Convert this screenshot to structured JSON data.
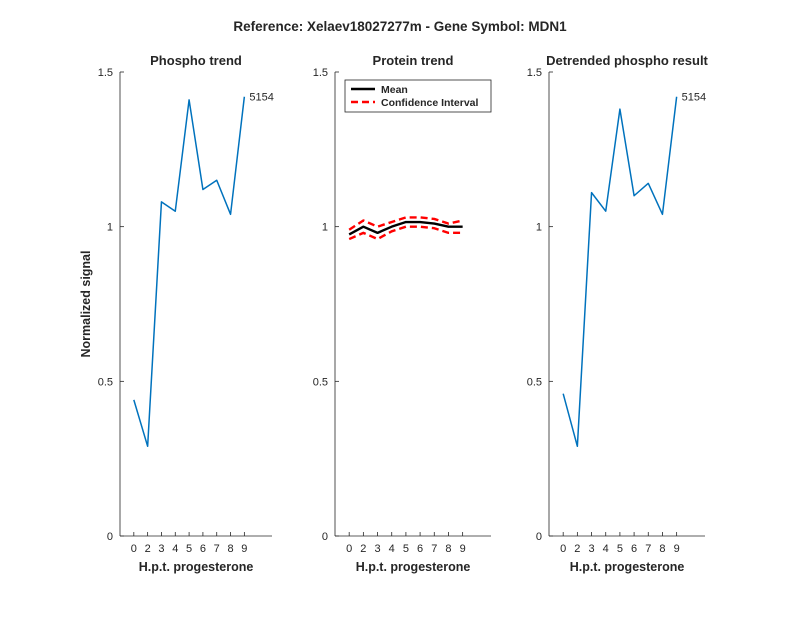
{
  "figure_title": "Reference:  Xelaev18027277m - Gene Symbol:  MDN1",
  "colors": {
    "series_blue": "#0072bd",
    "mean_black": "#000000",
    "ci_red": "#ff0000",
    "axis": "#262626"
  },
  "chart_data": [
    {
      "type": "line",
      "title": "Phospho trend",
      "xlabel": "H.p.t. progesterone",
      "ylabel": "Normalized signal",
      "xlim": [
        -1,
        10
      ],
      "ylim": [
        0,
        1.5
      ],
      "xticks": [
        0,
        2,
        3,
        4,
        5,
        6,
        7,
        8,
        9
      ],
      "yticks": [
        0,
        0.5,
        1,
        1.5
      ],
      "ytick_labels": [
        "0",
        "0.5",
        "1",
        "1.5"
      ],
      "x": [
        0,
        1,
        2,
        3,
        4,
        5,
        6,
        7,
        8
      ],
      "series": [
        {
          "values": [
            0.44,
            0.29,
            1.08,
            1.05,
            1.41,
            1.12,
            1.15,
            1.04,
            1.42
          ],
          "color": "#0072bd"
        }
      ],
      "annotations": [
        {
          "text": "5154",
          "x": 8,
          "y": 1.42
        }
      ]
    },
    {
      "type": "line",
      "title": "Protein trend",
      "xlabel": "H.p.t. progesterone",
      "ylabel": "",
      "xlim": [
        -1,
        10
      ],
      "ylim": [
        0,
        1.5
      ],
      "xticks": [
        0,
        2,
        3,
        4,
        5,
        6,
        7,
        8,
        9
      ],
      "yticks": [
        0,
        0.5,
        1,
        1.5
      ],
      "ytick_labels": [
        "0",
        "0.5",
        "1",
        "1.5"
      ],
      "x": [
        0,
        1,
        2,
        3,
        4,
        5,
        6,
        7,
        8
      ],
      "legend": {
        "location": "top-left",
        "entries": [
          "Mean",
          "Confidence Interval"
        ]
      },
      "series": [
        {
          "name": "Mean",
          "values": [
            0.975,
            1.0,
            0.98,
            1.0,
            1.015,
            1.015,
            1.01,
            1.0,
            1.0
          ],
          "color": "#000000",
          "style": "solid"
        },
        {
          "name": "Confidence Interval",
          "values": [
            0.99,
            1.02,
            1.0,
            1.015,
            1.03,
            1.03,
            1.025,
            1.01,
            1.02
          ],
          "color": "#ff0000",
          "style": "dashed"
        },
        {
          "name": "Confidence Interval (lower)",
          "values": [
            0.96,
            0.98,
            0.96,
            0.985,
            1.0,
            1.0,
            0.995,
            0.98,
            0.98
          ],
          "color": "#ff0000",
          "style": "dashed"
        }
      ]
    },
    {
      "type": "line",
      "title": "Detrended phospho result",
      "xlabel": "H.p.t. progesterone",
      "ylabel": "",
      "xlim": [
        -1,
        10
      ],
      "ylim": [
        0,
        1.5
      ],
      "xticks": [
        0,
        2,
        3,
        4,
        5,
        6,
        7,
        8,
        9
      ],
      "yticks": [
        0,
        0.5,
        1,
        1.5
      ],
      "ytick_labels": [
        "0",
        "0.5",
        "1",
        "1.5"
      ],
      "x": [
        0,
        1,
        2,
        3,
        4,
        5,
        6,
        7,
        8
      ],
      "series": [
        {
          "values": [
            0.46,
            0.29,
            1.11,
            1.05,
            1.38,
            1.1,
            1.14,
            1.04,
            1.42
          ],
          "color": "#0072bd"
        }
      ],
      "annotations": [
        {
          "text": "5154",
          "x": 8,
          "y": 1.42
        }
      ]
    }
  ]
}
